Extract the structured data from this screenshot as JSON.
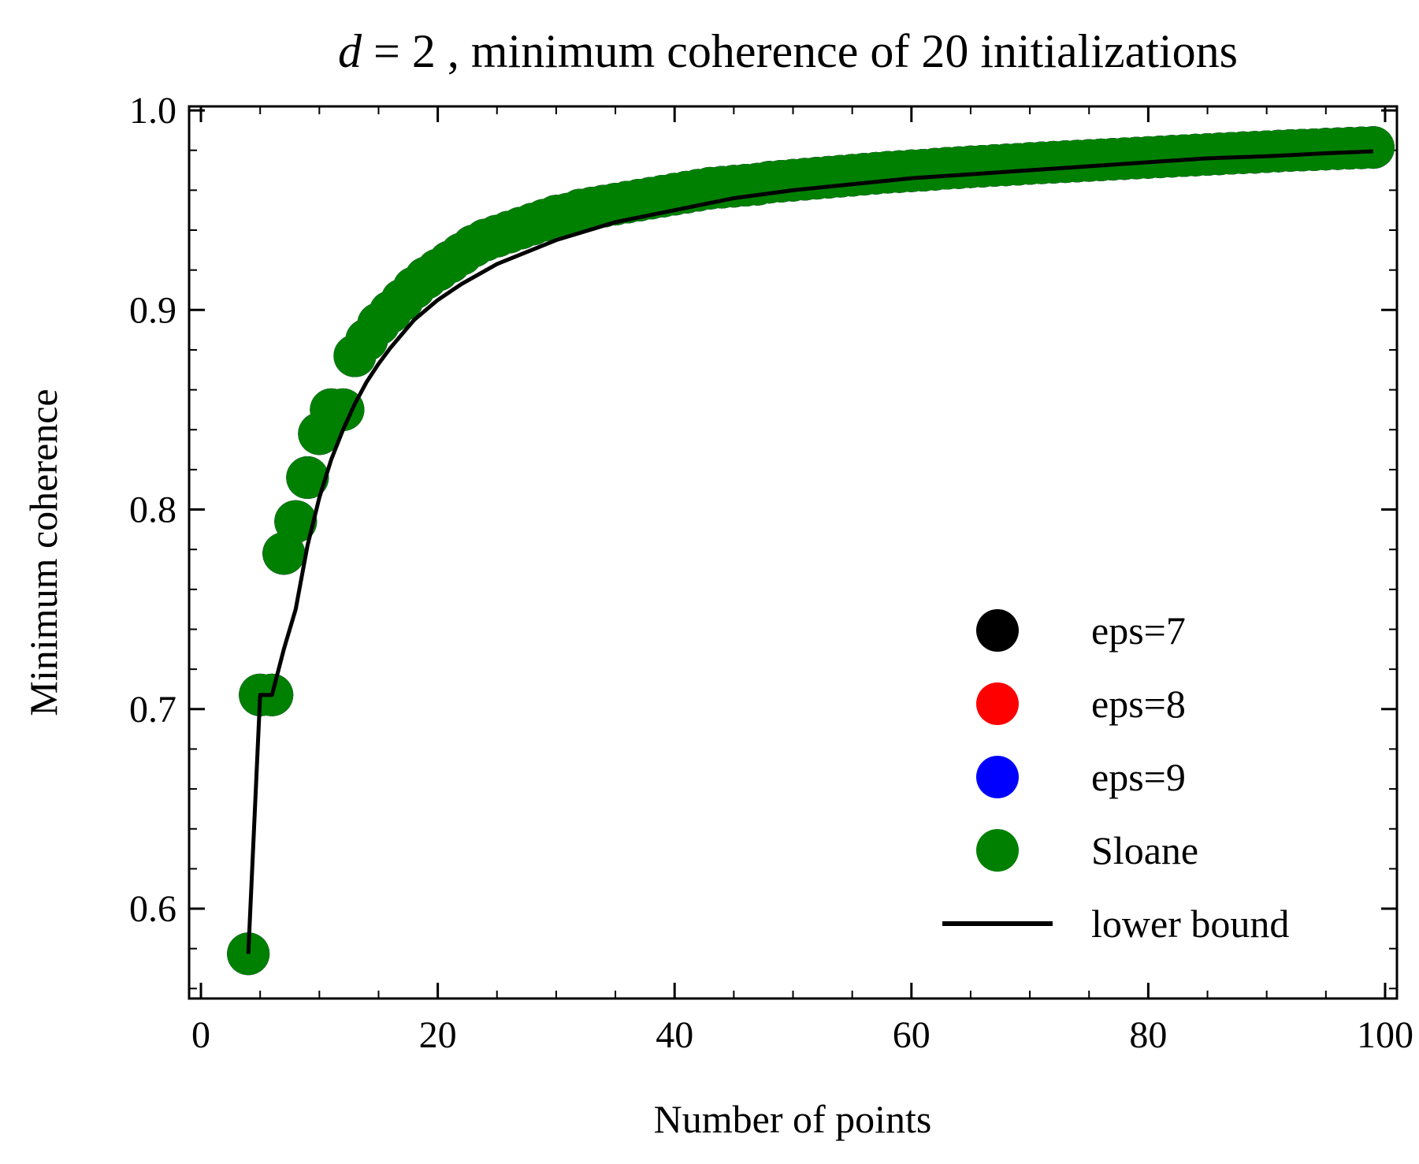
{
  "chart_data": {
    "type": "scatter",
    "title": {
      "var": "d",
      "eq": " = 2",
      "rest": ", minimum coherence of 20 initializations"
    },
    "xlabel": "Number of points",
    "ylabel": "Minimum coherence",
    "xlim": [
      -1,
      101
    ],
    "ylim": [
      0.555,
      1.002
    ],
    "x_ticks": [
      0,
      20,
      40,
      60,
      80,
      100
    ],
    "x_tick_labels": [
      "0",
      "20",
      "40",
      "60",
      "80",
      "100"
    ],
    "y_ticks": [
      0.6,
      0.7,
      0.8,
      0.9,
      1.0
    ],
    "y_tick_labels": [
      "0.6",
      "0.7",
      "0.8",
      "0.9",
      "1.0"
    ],
    "x_minor_step": 5,
    "y_minor_step": 0.02,
    "grid": false,
    "legend_position": "lower-right",
    "points": {
      "x": [
        4,
        5,
        6,
        7,
        8,
        9,
        10,
        11,
        12,
        13,
        14,
        15,
        16,
        17,
        18,
        19,
        20,
        21,
        22,
        23,
        24,
        25,
        26,
        27,
        28,
        29,
        30,
        31,
        32,
        33,
        34,
        35,
        36,
        37,
        38,
        39,
        40,
        41,
        42,
        43,
        44,
        45,
        46,
        47,
        48,
        49,
        50,
        51,
        52,
        53,
        54,
        55,
        56,
        57,
        58,
        59,
        60,
        61,
        62,
        63,
        64,
        65,
        66,
        67,
        68,
        69,
        70,
        71,
        72,
        73,
        74,
        75,
        76,
        77,
        78,
        79,
        80,
        81,
        82,
        83,
        84,
        85,
        86,
        87,
        88,
        89,
        90,
        91,
        92,
        93,
        94,
        95,
        96,
        97,
        98,
        99
      ],
      "y": [
        0.5774,
        0.7071,
        0.7071,
        0.778,
        0.794,
        0.816,
        0.838,
        0.85,
        0.85,
        0.877,
        0.885,
        0.893,
        0.899,
        0.905,
        0.911,
        0.916,
        0.92,
        0.924,
        0.928,
        0.932,
        0.935,
        0.937,
        0.939,
        0.941,
        0.943,
        0.945,
        0.947,
        0.948,
        0.95,
        0.951,
        0.952,
        0.953,
        0.954,
        0.955,
        0.956,
        0.957,
        0.958,
        0.959,
        0.96,
        0.961,
        0.9615,
        0.962,
        0.9625,
        0.963,
        0.964,
        0.9645,
        0.965,
        0.9655,
        0.966,
        0.9665,
        0.967,
        0.9675,
        0.968,
        0.9685,
        0.969,
        0.9693,
        0.9697,
        0.97,
        0.9705,
        0.971,
        0.9713,
        0.9717,
        0.972,
        0.9724,
        0.9727,
        0.973,
        0.9734,
        0.9737,
        0.974,
        0.9743,
        0.9746,
        0.9749,
        0.9752,
        0.9755,
        0.9758,
        0.9761,
        0.9764,
        0.9767,
        0.977,
        0.9773,
        0.9776,
        0.9779,
        0.9782,
        0.9785,
        0.9788,
        0.979,
        0.9793,
        0.9796,
        0.9799,
        0.9801,
        0.9803,
        0.9806,
        0.9808,
        0.981,
        0.9812,
        0.9814
      ]
    },
    "series": [
      {
        "name": "eps=7",
        "kind": "scatter",
        "color": "#000000",
        "uses": "points"
      },
      {
        "name": "eps=8",
        "kind": "scatter",
        "color": "#ff0000",
        "uses": "points"
      },
      {
        "name": "eps=9",
        "kind": "scatter",
        "color": "#0000ff",
        "uses": "points"
      },
      {
        "name": "Sloane",
        "kind": "scatter",
        "color": "#008000",
        "uses": "points"
      },
      {
        "name": "lower bound",
        "kind": "line",
        "color": "#000000",
        "x": [
          4,
          5,
          6,
          7,
          8,
          9,
          10,
          11,
          12,
          13,
          14,
          15,
          16,
          18,
          20,
          22,
          25,
          30,
          35,
          40,
          45,
          50,
          55,
          60,
          65,
          70,
          75,
          80,
          85,
          90,
          95,
          99
        ],
        "y": [
          0.5774,
          0.7071,
          0.7071,
          0.73,
          0.75,
          0.782,
          0.806,
          0.825,
          0.84,
          0.853,
          0.864,
          0.873,
          0.881,
          0.895,
          0.905,
          0.913,
          0.923,
          0.935,
          0.944,
          0.95,
          0.956,
          0.96,
          0.963,
          0.966,
          0.968,
          0.97,
          0.972,
          0.974,
          0.976,
          0.977,
          0.9785,
          0.9795
        ]
      }
    ]
  }
}
